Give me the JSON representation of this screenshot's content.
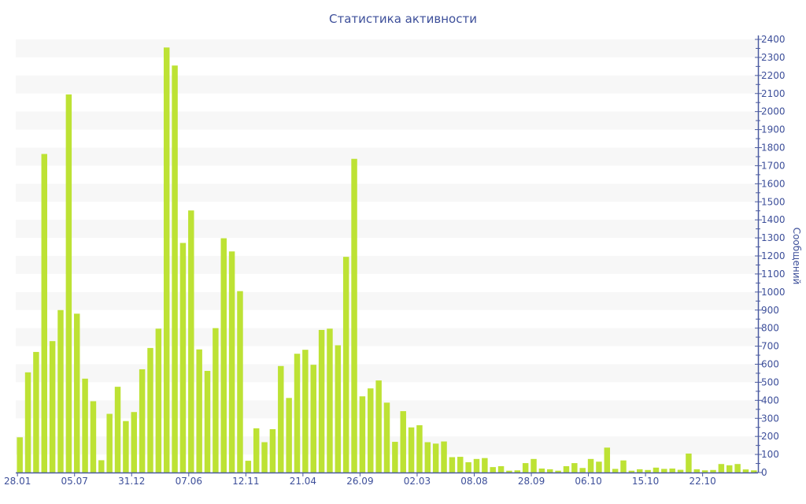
{
  "chart_data": {
    "type": "bar",
    "title": "Статистика активности",
    "xlabel": "",
    "ylabel": "Сообщений",
    "ylim": [
      0,
      2400
    ],
    "y_ticks": [
      0,
      100,
      200,
      300,
      400,
      500,
      600,
      700,
      800,
      900,
      1000,
      1100,
      1200,
      1300,
      1400,
      1500,
      1600,
      1700,
      1800,
      1900,
      2000,
      2100,
      2200,
      2300,
      2400
    ],
    "y_axis_position": "right",
    "grid": "alternating horizontal bands",
    "x_tick_labels": [
      {
        "bar": 0,
        "label": "28.01"
      },
      {
        "bar": 7,
        "label": "05.07"
      },
      {
        "bar": 14,
        "label": "31.12"
      },
      {
        "bar": 21,
        "label": "07.06"
      },
      {
        "bar": 28,
        "label": "12.11"
      },
      {
        "bar": 35,
        "label": "21.04"
      },
      {
        "bar": 42,
        "label": "26.09"
      },
      {
        "bar": 49,
        "label": "02.03"
      },
      {
        "bar": 56,
        "label": "08.08"
      },
      {
        "bar": 63,
        "label": "28.09"
      },
      {
        "bar": 70,
        "label": "06.10"
      },
      {
        "bar": 77,
        "label": "15.10"
      },
      {
        "bar": 84,
        "label": "22.10"
      }
    ],
    "values": [
      195,
      555,
      668,
      1765,
      728,
      900,
      2095,
      880,
      520,
      395,
      68,
      325,
      475,
      285,
      335,
      572,
      690,
      797,
      2355,
      2255,
      1272,
      1452,
      682,
      563,
      800,
      1298,
      1225,
      1005,
      65,
      245,
      168,
      240,
      590,
      413,
      658,
      680,
      597,
      790,
      797,
      705,
      1195,
      1738,
      422,
      466,
      510,
      387,
      170,
      340,
      250,
      262,
      168,
      160,
      172,
      85,
      87,
      57,
      75,
      80,
      30,
      35,
      10,
      12,
      52,
      75,
      22,
      18,
      10,
      35,
      52,
      25,
      75,
      60,
      138,
      20,
      67,
      10,
      18,
      14,
      27,
      20,
      22,
      15,
      105,
      18,
      12,
      14,
      47,
      40,
      47,
      17,
      12
    ],
    "colors": {
      "bar": "#bde234",
      "axis": "#4a5aa0",
      "text": "#3d4f9a",
      "band": "#f7f7f7"
    }
  }
}
